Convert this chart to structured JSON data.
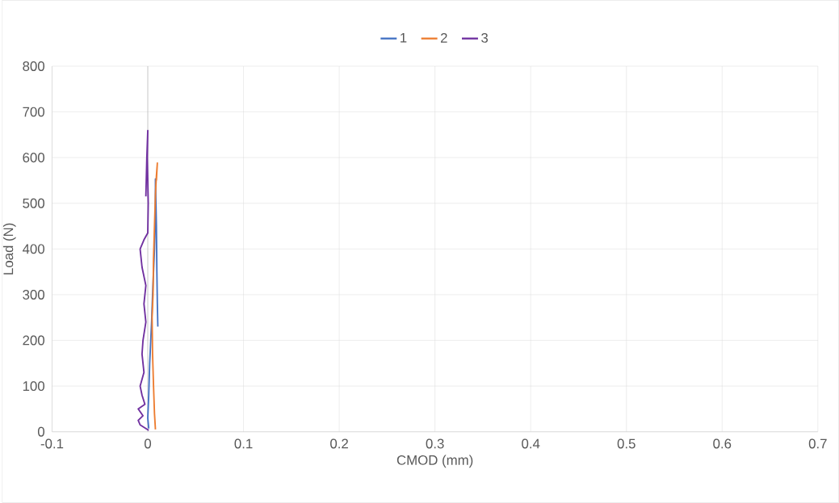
{
  "chart_data": {
    "type": "line",
    "xlabel": "CMOD (mm)",
    "ylabel": "Load (N)",
    "xlim": [
      -0.1,
      0.7
    ],
    "ylim": [
      0,
      800
    ],
    "xticks": [
      -0.1,
      0,
      0.1,
      0.2,
      0.3,
      0.4,
      0.5,
      0.6,
      0.7
    ],
    "yticks": [
      0,
      100,
      200,
      300,
      400,
      500,
      600,
      700,
      800
    ],
    "grid": true,
    "legend": "top",
    "marker": "none",
    "line_style": "solid",
    "series": [
      {
        "name": "1",
        "color": "#4472c4",
        "x": [
          0.001,
          0,
          0.001,
          0.002,
          0.004,
          0.005,
          0.007,
          0.008,
          0.008,
          0.009,
          0.0095,
          0.01,
          0.0105
        ],
        "values": [
          7,
          30,
          80,
          150,
          240,
          300,
          400,
          480,
          553,
          450,
          350,
          280,
          230
        ]
      },
      {
        "name": "2",
        "color": "#ed7d31",
        "x": [
          0.008,
          0.007,
          0.006,
          0.005,
          0.0045,
          0.0055,
          0.006,
          0.007,
          0.008,
          0.009,
          0.01,
          0.009
        ],
        "values": [
          5,
          40,
          100,
          170,
          250,
          300,
          380,
          450,
          520,
          560,
          588,
          550
        ]
      },
      {
        "name": "3",
        "color": "#7030a0",
        "x": [
          0.001,
          -0.008,
          -0.01,
          -0.005,
          -0.01,
          -0.003,
          -0.006,
          -0.008,
          -0.004,
          -0.006,
          -0.005,
          -0.002,
          -0.004,
          -0.002,
          -0.006,
          -0.008,
          -0.004,
          0,
          0.0005,
          -0.0005,
          0,
          -0.001,
          -0.002
        ],
        "values": [
          3,
          15,
          25,
          35,
          50,
          60,
          80,
          100,
          130,
          170,
          200,
          240,
          280,
          320,
          360,
          400,
          420,
          435,
          500,
          600,
          659,
          600,
          515
        ]
      }
    ]
  }
}
